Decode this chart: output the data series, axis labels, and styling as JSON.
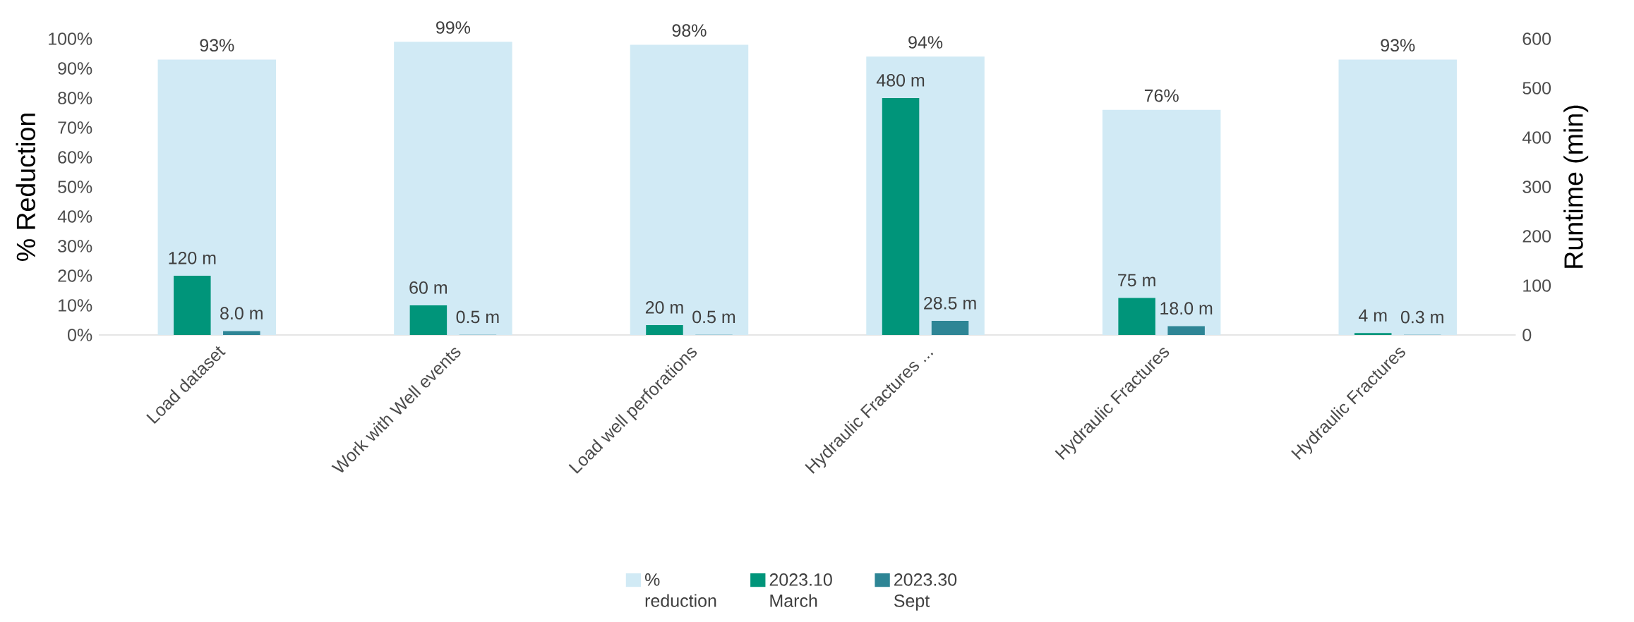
{
  "chart_data": {
    "type": "bar",
    "ylabel": "% Reduction",
    "y2label": "Runtime (min)",
    "categories": [
      "Load dataset",
      "Work with Well events",
      "Load well perforations",
      "Hydraulic Fractures ...",
      "Hydraulic Fractures",
      "Hydraulic Fractures"
    ],
    "series": [
      {
        "name": "% reduction",
        "color": "#d1eaf5",
        "values": [
          93,
          99,
          98,
          94,
          76,
          93
        ],
        "value_labels": [
          "93%",
          "99%",
          "98%",
          "94%",
          "76%",
          "93%"
        ]
      },
      {
        "name": "2023.10 March",
        "color": "#00957a",
        "axis": "y2",
        "values": [
          120,
          60,
          20,
          480,
          75,
          4
        ],
        "value_labels": [
          "120 m",
          "60 m",
          "20 m",
          "480 m",
          "75 m",
          "4 m"
        ]
      },
      {
        "name": "2023.30 Sept",
        "color": "#2e8595",
        "axis": "y2",
        "values": [
          8.0,
          0.5,
          0.5,
          28.5,
          18.0,
          0.3
        ],
        "value_labels": [
          "8.0 m",
          "0.5 m",
          "0.5 m",
          "28.5 m",
          "18.0 m",
          "0.3 m"
        ]
      }
    ],
    "ylim": [
      0,
      100
    ],
    "yticks": [
      {
        "value": 0,
        "label": "0%"
      },
      {
        "value": 10,
        "label": "10%"
      },
      {
        "value": 20,
        "label": "20%"
      },
      {
        "value": 30,
        "label": "30%"
      },
      {
        "value": 40,
        "label": "40%"
      },
      {
        "value": 50,
        "label": "50%"
      },
      {
        "value": 60,
        "label": "60%"
      },
      {
        "value": 70,
        "label": "70%"
      },
      {
        "value": 80,
        "label": "80%"
      },
      {
        "value": 90,
        "label": "90%"
      },
      {
        "value": 100,
        "label": "100%"
      }
    ],
    "y2lim": [
      0,
      600
    ],
    "y2ticks": [
      0,
      100,
      200,
      300,
      400,
      500,
      600
    ],
    "legend": "bottom"
  }
}
